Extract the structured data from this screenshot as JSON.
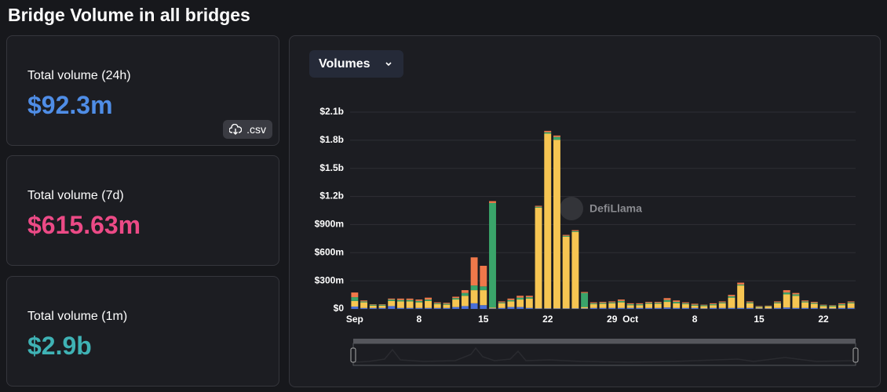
{
  "header": {
    "title": "Bridge Volume in all bridges"
  },
  "stats": [
    {
      "label": "Total volume (24h)",
      "value": "$92.3m",
      "color": "#4f8de6"
    },
    {
      "label": "Total volume (7d)",
      "value": "$615.63m",
      "color": "#ec4a86"
    },
    {
      "label": "Total volume (1m)",
      "value": "$2.9b",
      "color": "#3fb2b5"
    }
  ],
  "csv_button": ".csv",
  "chart_data": {
    "type": "bar",
    "stacked": true,
    "selector": "Volumes",
    "watermark": "DefiLlama",
    "categories": [
      "Sep",
      null,
      null,
      null,
      null,
      null,
      null,
      "8",
      null,
      null,
      null,
      null,
      null,
      null,
      "15",
      null,
      null,
      null,
      null,
      null,
      null,
      "22",
      null,
      null,
      null,
      null,
      null,
      null,
      "29",
      null,
      "Oct",
      null,
      null,
      null,
      null,
      null,
      null,
      "8",
      null,
      null,
      null,
      null,
      null,
      null,
      "15",
      null,
      null,
      null,
      null,
      null,
      null,
      "22",
      null,
      null,
      null
    ],
    "series": [
      {
        "color": "#4a6fd8",
        "values": [
          25,
          10,
          10,
          10,
          30,
          10,
          10,
          10,
          10,
          10,
          10,
          20,
          30,
          60,
          40,
          5,
          10,
          20,
          20,
          10,
          5,
          5,
          5,
          5,
          5,
          5,
          10,
          10,
          10,
          10,
          10,
          10,
          10,
          10,
          15,
          10,
          10,
          10,
          5,
          10,
          10,
          10,
          10,
          10,
          5,
          5,
          10,
          15,
          10,
          10,
          10,
          5,
          5,
          10,
          10
        ]
      },
      {
        "color": "#f6c552",
        "values": [
          60,
          60,
          25,
          25,
          55,
          70,
          70,
          60,
          75,
          40,
          35,
          80,
          110,
          140,
          160,
          10,
          50,
          60,
          80,
          100,
          1075,
          1865,
          1800,
          765,
          815,
          15,
          40,
          45,
          50,
          60,
          30,
          30,
          45,
          45,
          60,
          50,
          40,
          25,
          25,
          30,
          50,
          110,
          240,
          50,
          15,
          20,
          50,
          140,
          130,
          60,
          45,
          25,
          20,
          30,
          50
        ]
      },
      {
        "color": "#3aa46a",
        "values": [
          40,
          10,
          10,
          10,
          15,
          15,
          15,
          15,
          15,
          10,
          10,
          15,
          30,
          50,
          40,
          1115,
          10,
          15,
          20,
          15,
          10,
          15,
          30,
          10,
          10,
          150,
          10,
          10,
          10,
          15,
          10,
          10,
          10,
          10,
          20,
          15,
          10,
          10,
          10,
          10,
          10,
          15,
          10,
          10,
          5,
          5,
          10,
          20,
          15,
          10,
          10,
          10,
          10,
          10,
          10
        ]
      },
      {
        "color": "#f0784a",
        "values": [
          50,
          10,
          5,
          5,
          10,
          15,
          15,
          15,
          20,
          10,
          10,
          15,
          30,
          300,
          220,
          20,
          10,
          15,
          20,
          15,
          10,
          15,
          15,
          10,
          10,
          10,
          10,
          10,
          10,
          15,
          10,
          10,
          10,
          10,
          20,
          15,
          10,
          10,
          5,
          10,
          10,
          15,
          20,
          10,
          5,
          5,
          10,
          25,
          15,
          10,
          10,
          5,
          5,
          10,
          10
        ]
      }
    ],
    "ylim": [
      0,
      2100
    ],
    "yticks": [
      {
        "value": 0,
        "label": "$0"
      },
      {
        "value": 300,
        "label": "$300m"
      },
      {
        "value": 600,
        "label": "$600m"
      },
      {
        "value": 900,
        "label": "$900m"
      },
      {
        "value": 1200,
        "label": "$1.2b"
      },
      {
        "value": 1500,
        "label": "$1.5b"
      },
      {
        "value": 1800,
        "label": "$1.8b"
      },
      {
        "value": 2100,
        "label": "$2.1b"
      }
    ],
    "grid": true
  }
}
